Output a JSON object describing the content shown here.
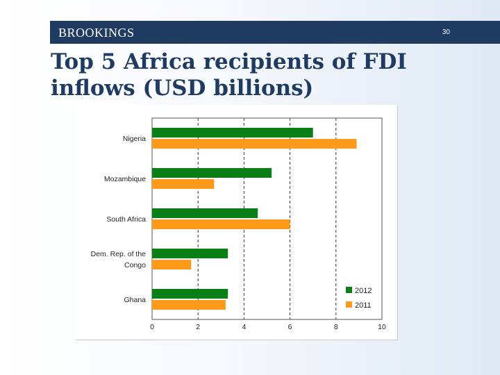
{
  "header": {
    "brand": "BROOKINGS",
    "page_number": "30"
  },
  "title": "Top 5 Africa recipients of FDI inflows (USD billions)",
  "colors": {
    "header_bar": "#1f3b62",
    "title": "#1f3b62",
    "series_2012": "#0a7f16",
    "series_2011": "#ff9a1a"
  },
  "chart_data": {
    "type": "bar",
    "orientation": "horizontal",
    "title": "",
    "xlabel": "",
    "ylabel": "",
    "categories": [
      "Nigeria",
      "Mozambique",
      "South Africa",
      "Dem. Rep. of the Congo",
      "Ghana"
    ],
    "category_lines": [
      [
        "Nigeria"
      ],
      [
        "Mozambique"
      ],
      [
        "South Africa"
      ],
      [
        "Dem. Rep. of the",
        "Congo"
      ],
      [
        "Ghana"
      ]
    ],
    "series": [
      {
        "name": "2012",
        "values": [
          7.0,
          5.2,
          4.6,
          3.3,
          3.3
        ]
      },
      {
        "name": "2011",
        "values": [
          8.9,
          2.7,
          6.0,
          1.7,
          3.2
        ]
      }
    ],
    "xlim": [
      0,
      10
    ],
    "xticks": [
      "0",
      "2",
      "4",
      "6",
      "8",
      "10"
    ],
    "grid": "vertical dashed",
    "legend": "bottom-right"
  }
}
